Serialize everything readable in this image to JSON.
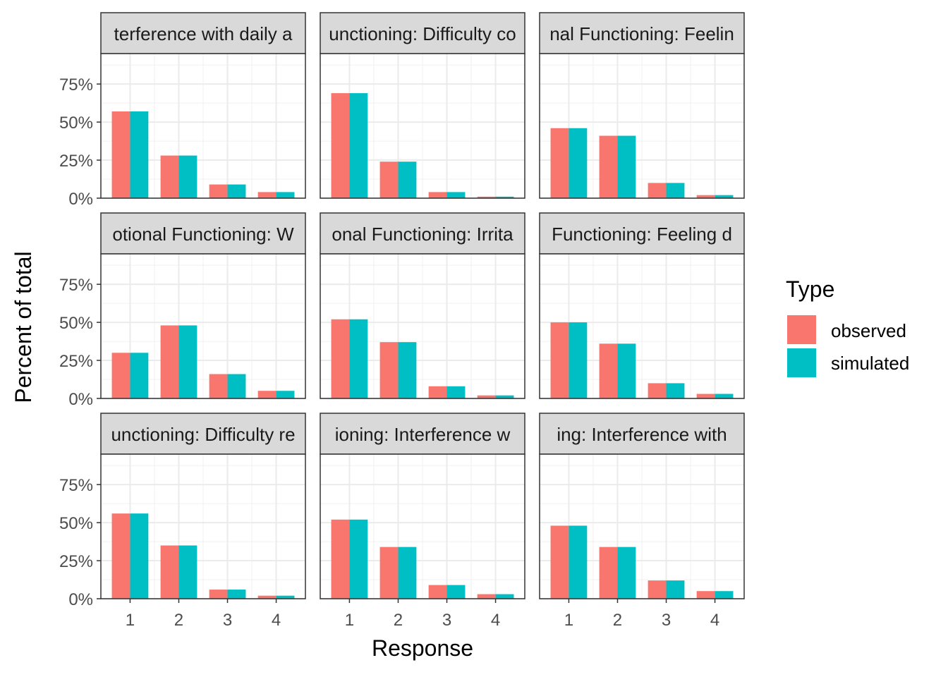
{
  "chart_data": {
    "type": "bar",
    "layout": "faceted 3x3 grid, shared axes",
    "xlabel": "Response",
    "ylabel": "Percent of total",
    "categories": [
      "1",
      "2",
      "3",
      "4"
    ],
    "ylim": [
      0,
      0.95
    ],
    "yticks": [
      0,
      0.25,
      0.5,
      0.75
    ],
    "ytick_labels": [
      "0%",
      "25%",
      "50%",
      "75%"
    ],
    "grid": true,
    "legend": {
      "title": "Type",
      "position": "right",
      "entries": [
        {
          "name": "observed",
          "color": "#F8766D"
        },
        {
          "name": "simulated",
          "color": "#00BFC4"
        }
      ]
    },
    "facets": [
      {
        "strip": "terference with daily a",
        "series": [
          {
            "name": "observed",
            "values": [
              0.57,
              0.28,
              0.09,
              0.04
            ]
          },
          {
            "name": "simulated",
            "values": [
              0.57,
              0.28,
              0.09,
              0.04
            ]
          }
        ]
      },
      {
        "strip": "unctioning: Difficulty co",
        "series": [
          {
            "name": "observed",
            "values": [
              0.69,
              0.24,
              0.04,
              0.01
            ]
          },
          {
            "name": "simulated",
            "values": [
              0.69,
              0.24,
              0.04,
              0.01
            ]
          }
        ]
      },
      {
        "strip": "nal Functioning: Feelin",
        "series": [
          {
            "name": "observed",
            "values": [
              0.46,
              0.41,
              0.1,
              0.02
            ]
          },
          {
            "name": "simulated",
            "values": [
              0.46,
              0.41,
              0.1,
              0.02
            ]
          }
        ]
      },
      {
        "strip": "otional Functioning: W",
        "series": [
          {
            "name": "observed",
            "values": [
              0.3,
              0.48,
              0.16,
              0.05
            ]
          },
          {
            "name": "simulated",
            "values": [
              0.3,
              0.48,
              0.16,
              0.05
            ]
          }
        ]
      },
      {
        "strip": "onal Functioning: Irrita",
        "series": [
          {
            "name": "observed",
            "values": [
              0.52,
              0.37,
              0.08,
              0.02
            ]
          },
          {
            "name": "simulated",
            "values": [
              0.52,
              0.37,
              0.08,
              0.02
            ]
          }
        ]
      },
      {
        "strip": "Functioning: Feeling d",
        "series": [
          {
            "name": "observed",
            "values": [
              0.5,
              0.36,
              0.1,
              0.03
            ]
          },
          {
            "name": "simulated",
            "values": [
              0.5,
              0.36,
              0.1,
              0.03
            ]
          }
        ]
      },
      {
        "strip": "unctioning: Difficulty re",
        "series": [
          {
            "name": "observed",
            "values": [
              0.56,
              0.35,
              0.06,
              0.02
            ]
          },
          {
            "name": "simulated",
            "values": [
              0.56,
              0.35,
              0.06,
              0.02
            ]
          }
        ]
      },
      {
        "strip": "ioning: Interference w",
        "series": [
          {
            "name": "observed",
            "values": [
              0.52,
              0.34,
              0.09,
              0.03
            ]
          },
          {
            "name": "simulated",
            "values": [
              0.52,
              0.34,
              0.09,
              0.03
            ]
          }
        ]
      },
      {
        "strip": "ing: Interference with",
        "series": [
          {
            "name": "observed",
            "values": [
              0.48,
              0.34,
              0.12,
              0.05
            ]
          },
          {
            "name": "simulated",
            "values": [
              0.48,
              0.34,
              0.12,
              0.05
            ]
          }
        ]
      }
    ]
  }
}
